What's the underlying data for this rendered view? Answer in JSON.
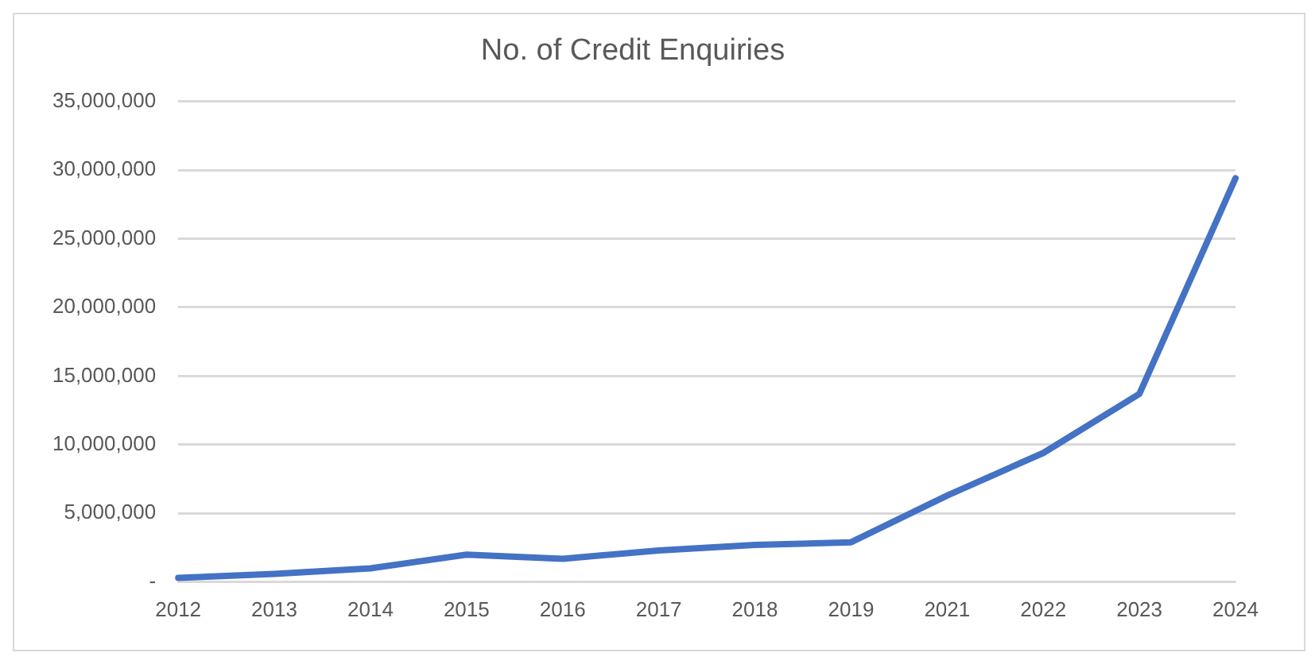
{
  "chart_data": {
    "type": "line",
    "title": "No. of Credit Enquiries",
    "categories": [
      "2012",
      "2013",
      "2014",
      "2015",
      "2016",
      "2017",
      "2018",
      "2019",
      "2021",
      "2022",
      "2023",
      "2024"
    ],
    "series": [
      {
        "color": "#4472c4",
        "values": [
          300000,
          600000,
          1000000,
          2000000,
          1700000,
          2300000,
          2700000,
          2900000,
          6300000,
          9400000,
          13700000,
          29400000
        ]
      }
    ],
    "ylim": [
      0,
      35000000
    ],
    "yticks": [
      {
        "value": 0,
        "label": "-"
      },
      {
        "value": 5000000,
        "label": "5,000,000"
      },
      {
        "value": 10000000,
        "label": "10,000,000"
      },
      {
        "value": 15000000,
        "label": "15,000,000"
      },
      {
        "value": 20000000,
        "label": "20,000,000"
      },
      {
        "value": 25000000,
        "label": "25,000,000"
      },
      {
        "value": 30000000,
        "label": "30,000,000"
      },
      {
        "value": 35000000,
        "label": "35,000,000"
      }
    ],
    "grid": "y",
    "legend": false,
    "marker": "none",
    "line_style": "solid"
  }
}
